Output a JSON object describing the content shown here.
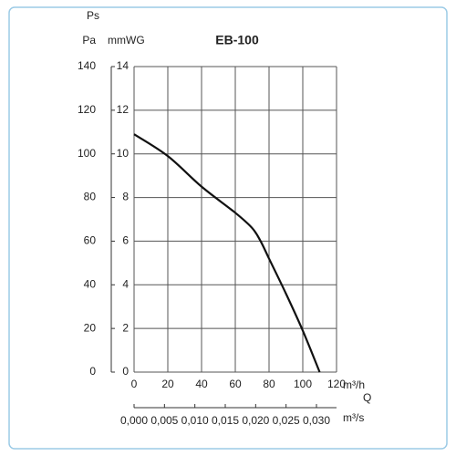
{
  "chart_data": {
    "type": "line",
    "title": "EB-100",
    "y_title": "Ps",
    "y_label": "mmWG",
    "y2_label": "Pa",
    "x_label": "m³/h",
    "x_axis_title": "Q",
    "x2_label": "m³/s",
    "x": [
      0,
      20,
      40,
      60,
      70,
      75,
      80,
      90,
      100,
      110
    ],
    "values": [
      10.9,
      9.9,
      8.5,
      7.3,
      6.6,
      6.0,
      5.2,
      3.6,
      1.9,
      0
    ],
    "color": "#111111",
    "xlim": [
      0,
      120
    ],
    "xticks": [
      0,
      20,
      40,
      60,
      80,
      100,
      120
    ],
    "ylim": [
      0,
      14
    ],
    "yticks": [
      0,
      2,
      4,
      6,
      8,
      10,
      12,
      14
    ],
    "y2lim": [
      0,
      140
    ],
    "y2ticks": [
      0,
      20,
      40,
      60,
      80,
      100,
      120,
      140
    ],
    "x2lim": [
      0,
      0.0333
    ],
    "x2ticks": [
      {
        "value": 0,
        "label": "0,000"
      },
      {
        "value": 0.005,
        "label": "0,005"
      },
      {
        "value": 0.01,
        "label": "0,010"
      },
      {
        "value": 0.015,
        "label": "0,015"
      },
      {
        "value": 0.02,
        "label": "0,020"
      },
      {
        "value": 0.025,
        "label": "0,025"
      },
      {
        "value": 0.03,
        "label": "0,030"
      }
    ],
    "grid": true
  }
}
